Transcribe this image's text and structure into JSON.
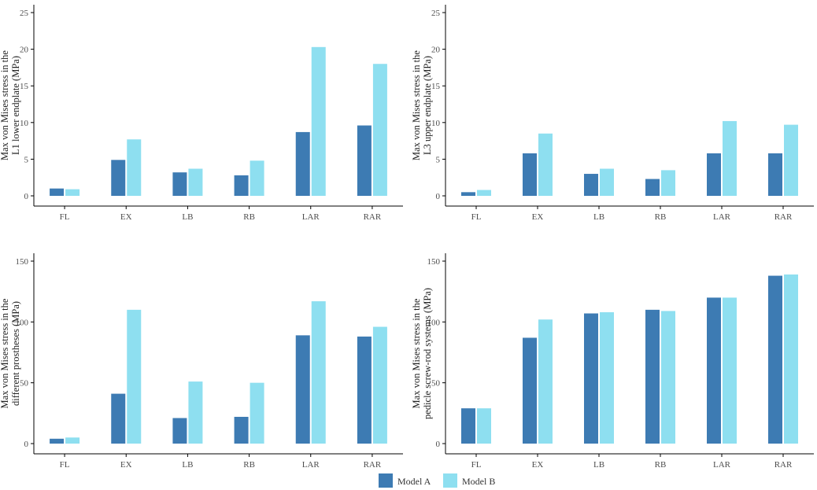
{
  "colors": {
    "model_a": "#3d7bb3",
    "model_b": "#8edff0",
    "axis": "#000000",
    "tick_text": "#4d4d4d"
  },
  "legend": {
    "items": [
      {
        "label": "Model A",
        "color": "#3d7bb3"
      },
      {
        "label": "Model B",
        "color": "#8edff0"
      }
    ],
    "position": "bottom-center"
  },
  "chart_data": [
    {
      "type": "bar",
      "ylabel_lines": [
        "Max von Mises stress in the",
        "L1 lower endplate (MPa)"
      ],
      "categories": [
        "FL",
        "EX",
        "LB",
        "RB",
        "LAR",
        "RAR"
      ],
      "ylim": [
        0,
        25
      ],
      "yticks": [
        0,
        5,
        10,
        15,
        20,
        25
      ],
      "series": [
        {
          "name": "Model A",
          "values": [
            1.0,
            4.9,
            3.2,
            2.8,
            8.7,
            9.6
          ]
        },
        {
          "name": "Model B",
          "values": [
            0.9,
            7.7,
            3.7,
            4.8,
            20.3,
            18.0
          ]
        }
      ]
    },
    {
      "type": "bar",
      "ylabel_lines": [
        "Max von Mises stress in the",
        "L3 upper endplate (MPa)"
      ],
      "categories": [
        "FL",
        "EX",
        "LB",
        "RB",
        "LAR",
        "RAR"
      ],
      "ylim": [
        0,
        25
      ],
      "yticks": [
        0,
        5,
        10,
        15,
        20,
        25
      ],
      "series": [
        {
          "name": "Model A",
          "values": [
            0.5,
            5.8,
            3.0,
            2.3,
            5.8,
            5.8
          ]
        },
        {
          "name": "Model B",
          "values": [
            0.8,
            8.5,
            3.7,
            3.5,
            10.2,
            9.7
          ]
        }
      ]
    },
    {
      "type": "bar",
      "ylabel_lines": [
        "Max von Mises stress in the",
        "different prostheses (MPa)"
      ],
      "categories": [
        "FL",
        "EX",
        "LB",
        "RB",
        "LAR",
        "RAR"
      ],
      "ylim": [
        0,
        150
      ],
      "yticks": [
        0,
        50,
        100,
        150
      ],
      "series": [
        {
          "name": "Model A",
          "values": [
            4,
            41,
            21,
            22,
            89,
            88
          ]
        },
        {
          "name": "Model B",
          "values": [
            5,
            110,
            51,
            50,
            117,
            96
          ]
        }
      ]
    },
    {
      "type": "bar",
      "ylabel_lines": [
        "Max von Mises stress in the",
        "pedicle screw-rod systems (MPa)"
      ],
      "categories": [
        "FL",
        "EX",
        "LB",
        "RB",
        "LAR",
        "RAR"
      ],
      "ylim": [
        0,
        150
      ],
      "yticks": [
        0,
        50,
        100,
        150
      ],
      "series": [
        {
          "name": "Model A",
          "values": [
            29,
            87,
            107,
            110,
            120,
            138
          ]
        },
        {
          "name": "Model B",
          "values": [
            29,
            102,
            108,
            109,
            120,
            139
          ]
        }
      ]
    }
  ]
}
